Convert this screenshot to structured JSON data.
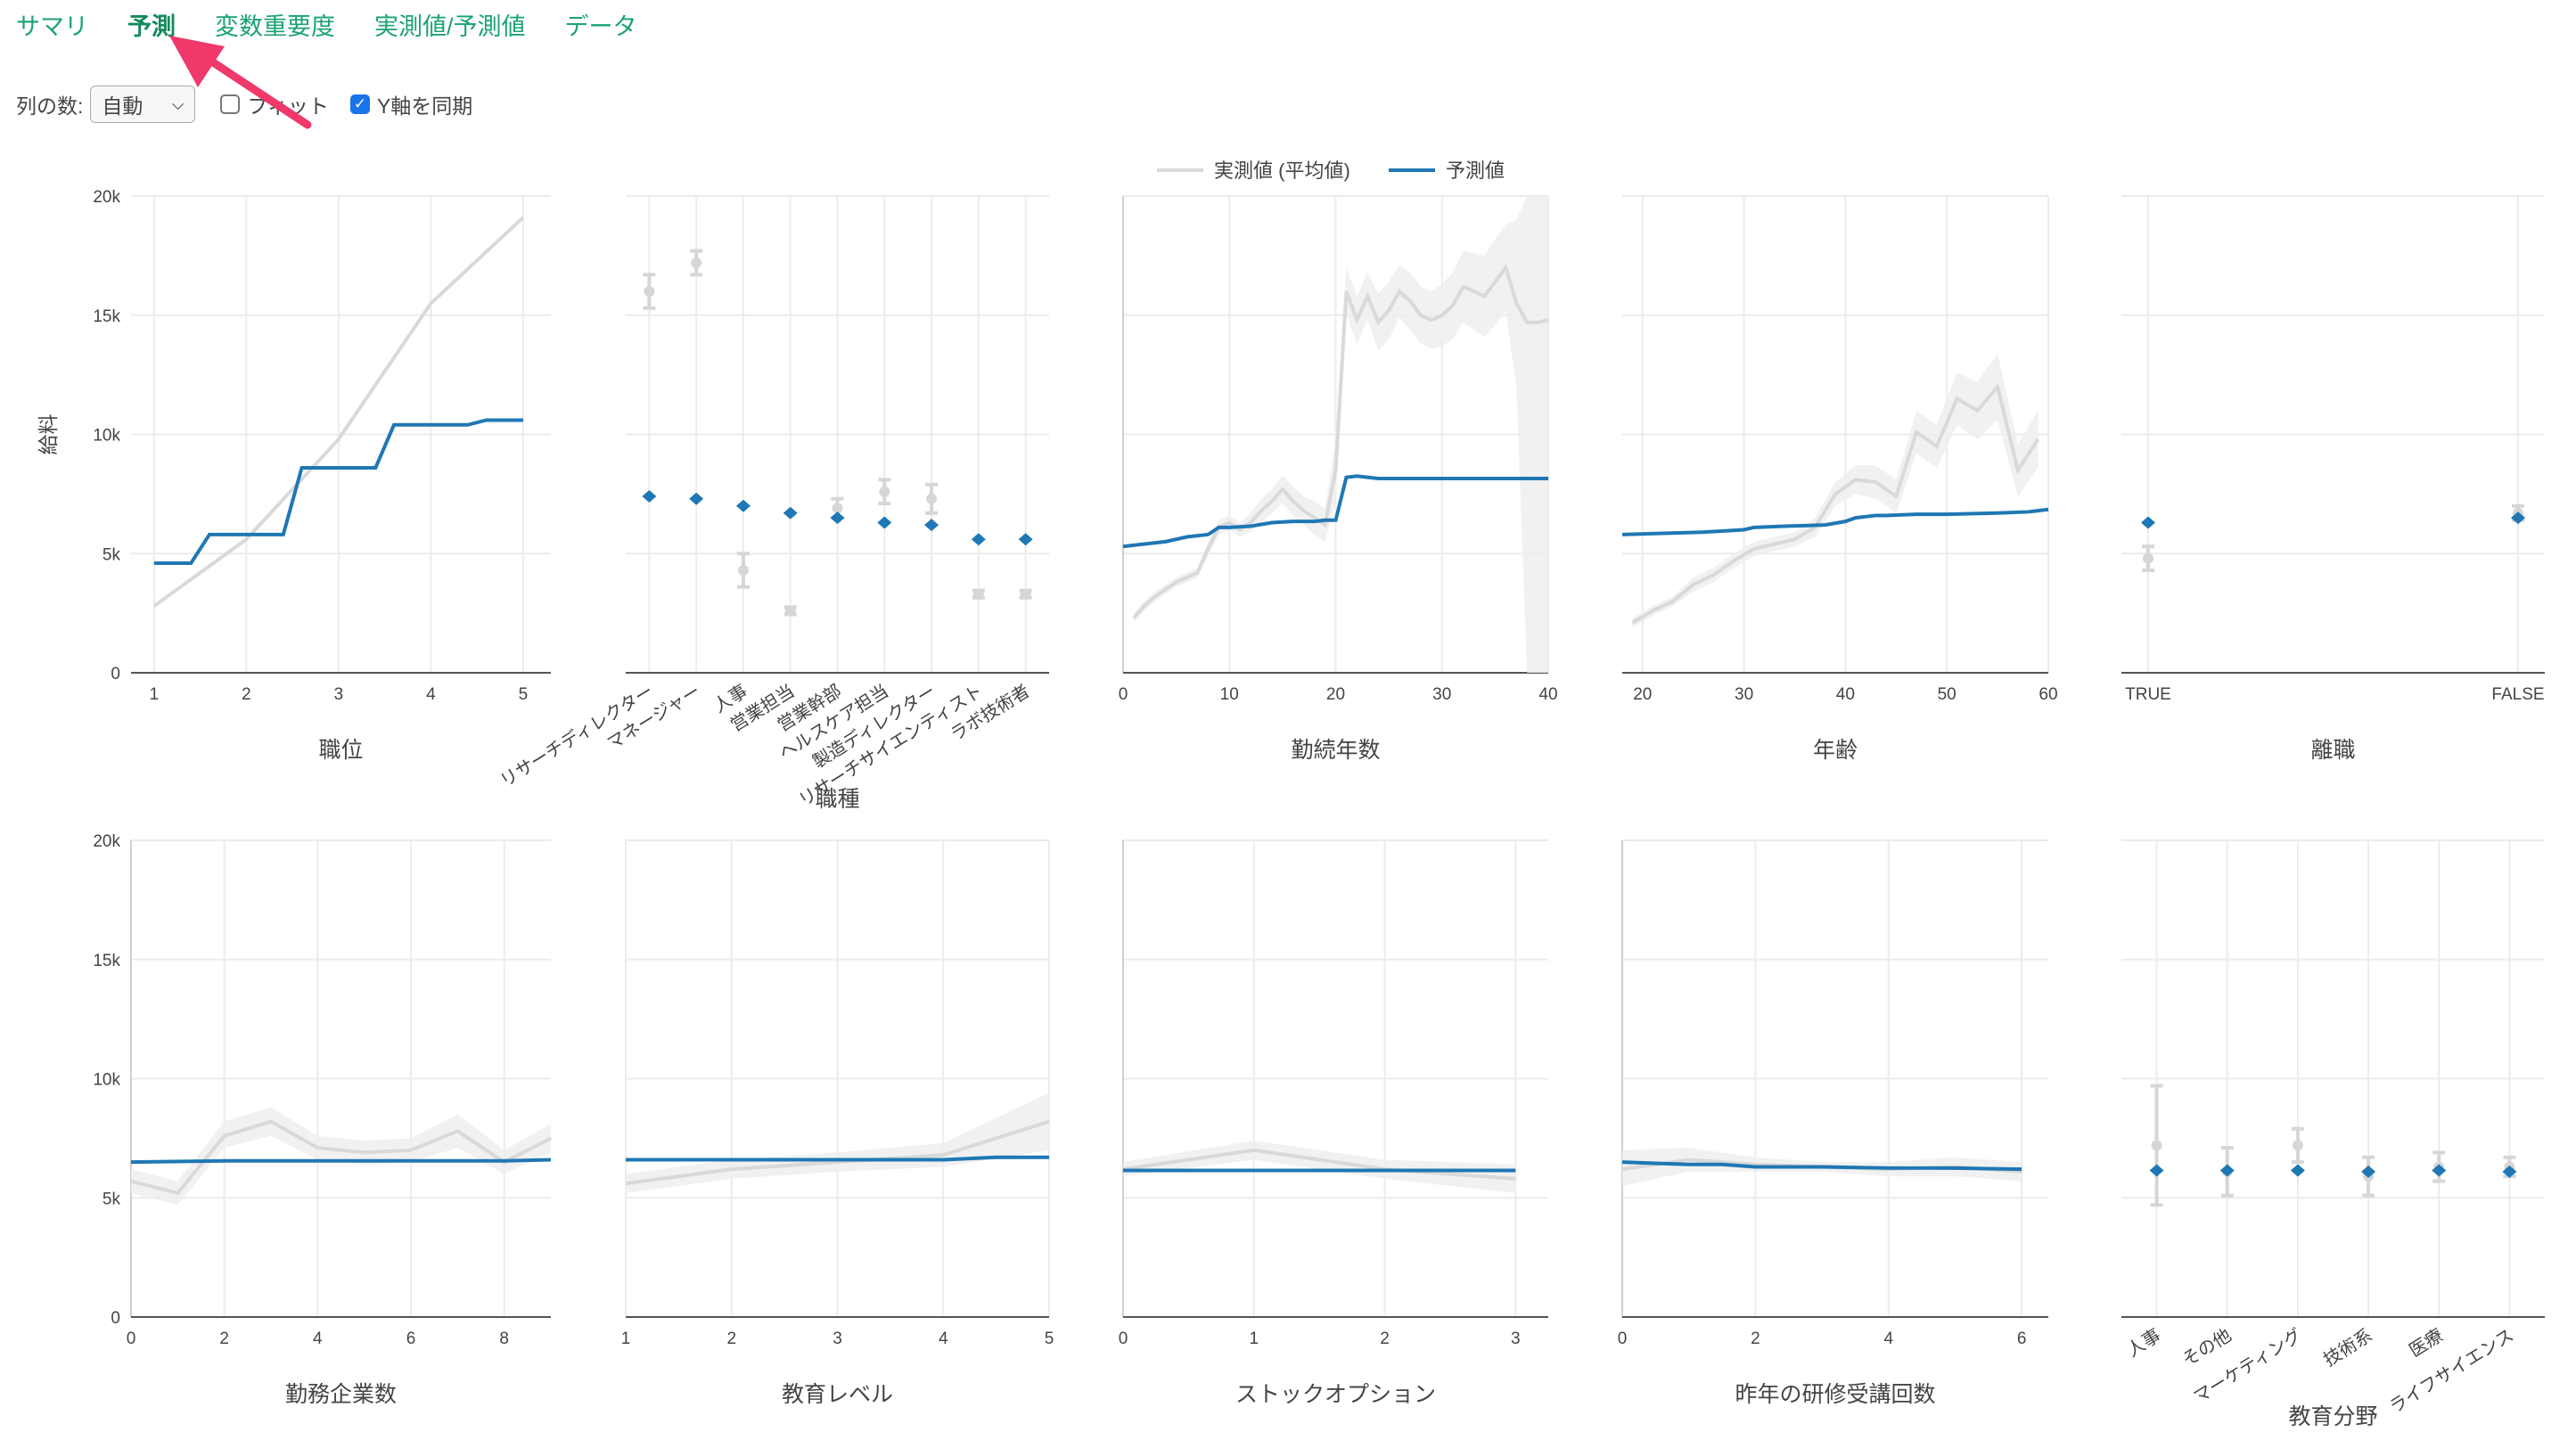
{
  "tabs": [
    {
      "label": "サマリ",
      "active": false
    },
    {
      "label": "予測",
      "active": true
    },
    {
      "label": "変数重要度",
      "active": false
    },
    {
      "label": "実測値/予測値",
      "active": false
    },
    {
      "label": "データ",
      "active": false
    }
  ],
  "controls": {
    "columns_label": "列の数:",
    "columns_value": "自動",
    "fit_label": "フィット",
    "fit_checked": false,
    "sync_y_label": "Y軸を同期",
    "sync_y_checked": true
  },
  "legend": {
    "actual_label": "実測値 (平均値)",
    "predicted_label": "予測値"
  },
  "colors": {
    "actual": "#d9d9d9",
    "predicted": "#1f77b4",
    "band": "#eeeeee",
    "tab": "#1aa274",
    "arrow": "#f0386b"
  },
  "chart_data": [
    {
      "type": "line",
      "title": "",
      "xlabel": "職位",
      "ylabel": "給料",
      "xlim": [
        0.75,
        5.3
      ],
      "ylim": [
        0,
        20000
      ],
      "xticks": [
        1,
        2,
        3,
        4,
        5
      ],
      "yticks": [
        {
          "v": 0,
          "label": "0"
        },
        {
          "v": 5000,
          "label": "5k"
        },
        {
          "v": 10000,
          "label": "10k"
        },
        {
          "v": 15000,
          "label": "15k"
        },
        {
          "v": 20000,
          "label": "20k"
        }
      ],
      "series": [
        {
          "name": "実測値 (平均値)",
          "x": [
            1,
            2,
            3,
            4,
            5
          ],
          "y": [
            2800,
            5600,
            9800,
            15500,
            19100
          ]
        },
        {
          "name": "予測値",
          "x": [
            1,
            1.4,
            1.6,
            2.4,
            2.6,
            3.4,
            3.6,
            4.4,
            4.6,
            5
          ],
          "y": [
            4600,
            4600,
            5800,
            5800,
            8600,
            8600,
            10400,
            10400,
            10600,
            10600
          ]
        }
      ]
    },
    {
      "type": "scatter",
      "title": "",
      "xlabel": "職種",
      "ylabel": "",
      "ylim": [
        0,
        20000
      ],
      "categories": [
        "リサーチディレクター",
        "マネージャー",
        "人事",
        "営業担当",
        "営業幹部",
        "ヘルスケア担当",
        "製造ディレクター",
        "リサーチサイエンティスト",
        "ラボ技術者"
      ],
      "series": [
        {
          "name": "実測値 (平均値)",
          "values": [
            16000,
            17200,
            4300,
            2600,
            6900,
            7600,
            7300,
            3300,
            3300
          ],
          "error": [
            700,
            500,
            700,
            150,
            400,
            500,
            600,
            150,
            150
          ]
        },
        {
          "name": "予測値",
          "values": [
            7400,
            7300,
            7000,
            6700,
            6500,
            6300,
            6200,
            5600,
            5600
          ]
        }
      ]
    },
    {
      "type": "line",
      "title": "",
      "xlabel": "勤続年数",
      "ylabel": "",
      "xlim": [
        0,
        40
      ],
      "ylim": [
        0,
        20000
      ],
      "xticks": [
        0,
        10,
        20,
        30,
        40
      ],
      "series": [
        {
          "name": "実測値 (平均値)",
          "x": [
            1,
            2,
            3,
            4,
            5,
            6,
            7,
            8,
            9,
            10,
            11,
            12,
            13,
            14,
            15,
            16,
            17,
            18,
            19,
            20,
            21,
            22,
            23,
            24,
            25,
            26,
            27,
            28,
            29,
            30,
            31,
            32,
            33,
            34,
            35,
            36,
            37,
            38,
            39,
            40
          ],
          "y": [
            2300,
            2800,
            3200,
            3500,
            3800,
            4000,
            4200,
            5200,
            6100,
            6300,
            6000,
            6300,
            6800,
            7200,
            7700,
            7200,
            6800,
            6500,
            6200,
            8500,
            16000,
            14800,
            15800,
            14700,
            15200,
            16000,
            15600,
            15000,
            14800,
            15000,
            15400,
            16200,
            16000,
            15800,
            16400,
            17000,
            15500,
            14700,
            14700,
            14800
          ],
          "band_lo": [
            2100,
            2600,
            3000,
            3300,
            3600,
            3800,
            4000,
            4900,
            5800,
            6000,
            5700,
            5900,
            6300,
            6700,
            7100,
            6600,
            6200,
            5800,
            5500,
            7200,
            15000,
            13800,
            14800,
            13500,
            14000,
            14900,
            14400,
            13800,
            13600,
            13700,
            14000,
            14700,
            14400,
            14100,
            14600,
            15200,
            12000,
            0,
            0,
            0
          ],
          "band_hi": [
            2500,
            3000,
            3400,
            3700,
            4000,
            4200,
            4400,
            5500,
            6400,
            6600,
            6300,
            6700,
            7300,
            7700,
            8300,
            7800,
            7400,
            7200,
            6900,
            9800,
            17000,
            15800,
            16800,
            15900,
            16400,
            17100,
            16800,
            16200,
            16000,
            16300,
            16800,
            17700,
            17600,
            17500,
            18200,
            18800,
            19000,
            20000,
            20000,
            20000
          ]
        },
        {
          "name": "予測値",
          "x": [
            0,
            2,
            4,
            6,
            8,
            9,
            10,
            12,
            14,
            16,
            18,
            19,
            20,
            21,
            22,
            24,
            26,
            30,
            35,
            40
          ],
          "y": [
            5300,
            5400,
            5500,
            5700,
            5800,
            6100,
            6100,
            6150,
            6300,
            6350,
            6350,
            6400,
            6400,
            8200,
            8250,
            8150,
            8150,
            8150,
            8150,
            8150
          ]
        }
      ]
    },
    {
      "type": "line",
      "title": "",
      "xlabel": "年齢",
      "ylabel": "",
      "xlim": [
        18,
        60
      ],
      "ylim": [
        0,
        20000
      ],
      "xticks": [
        20,
        30,
        40,
        50,
        60
      ],
      "series": [
        {
          "name": "実測値 (平均値)",
          "x": [
            19,
            21,
            23,
            25,
            27,
            29,
            31,
            33,
            35,
            37,
            39,
            41,
            43,
            45,
            47,
            49,
            51,
            53,
            55,
            57,
            59
          ],
          "y": [
            2100,
            2600,
            3000,
            3700,
            4100,
            4700,
            5200,
            5400,
            5600,
            6100,
            7500,
            8100,
            8000,
            7400,
            10100,
            9500,
            11500,
            11000,
            12000,
            8500,
            9800
          ],
          "band_lo": [
            1900,
            2400,
            2800,
            3400,
            3800,
            4400,
            4900,
            5100,
            5300,
            5700,
            7000,
            7500,
            7300,
            6700,
            9200,
            8600,
            10400,
            9800,
            10600,
            7400,
            8600
          ],
          "band_hi": [
            2300,
            2800,
            3200,
            4000,
            4400,
            5000,
            5500,
            5700,
            5900,
            6500,
            8000,
            8700,
            8700,
            8100,
            11000,
            10400,
            12600,
            12200,
            13400,
            9600,
            11000
          ]
        },
        {
          "name": "予測値",
          "x": [
            18,
            22,
            26,
            28,
            30,
            31,
            34,
            38,
            40,
            41,
            43,
            44,
            47,
            50,
            55,
            58,
            60
          ],
          "y": [
            5800,
            5850,
            5900,
            5950,
            6000,
            6100,
            6150,
            6200,
            6350,
            6500,
            6600,
            6600,
            6650,
            6650,
            6700,
            6750,
            6850
          ]
        }
      ]
    },
    {
      "type": "scatter",
      "title": "",
      "xlabel": "離職",
      "ylabel": "",
      "ylim": [
        0,
        20000
      ],
      "categories": [
        "TRUE",
        "FALSE"
      ],
      "series": [
        {
          "name": "実測値 (平均値)",
          "values": [
            4800,
            6700
          ],
          "error": [
            500,
            300
          ]
        },
        {
          "name": "予測値",
          "values": [
            6300,
            6500
          ]
        }
      ]
    },
    {
      "type": "line",
      "title": "",
      "xlabel": "勤務企業数",
      "ylabel": "",
      "xlim": [
        0,
        9
      ],
      "ylim": [
        0,
        20000
      ],
      "xticks": [
        0,
        2,
        4,
        6,
        8
      ],
      "yticks": [
        {
          "v": 0,
          "label": "0"
        },
        {
          "v": 5000,
          "label": "5k"
        },
        {
          "v": 10000,
          "label": "10k"
        },
        {
          "v": 15000,
          "label": "15k"
        },
        {
          "v": 20000,
          "label": "20k"
        }
      ],
      "series": [
        {
          "name": "実測値 (平均値)",
          "x": [
            0,
            1,
            2,
            3,
            4,
            5,
            6,
            7,
            8,
            9
          ],
          "y": [
            5700,
            5200,
            7600,
            8200,
            7100,
            6900,
            7000,
            7800,
            6500,
            7500
          ],
          "band_lo": [
            5200,
            4700,
            7100,
            7600,
            6600,
            6400,
            6500,
            7100,
            6000,
            6900
          ],
          "band_hi": [
            6200,
            5700,
            8200,
            8800,
            7600,
            7400,
            7500,
            8500,
            7000,
            8100
          ]
        },
        {
          "name": "予測値",
          "x": [
            0,
            2,
            4,
            6,
            8,
            9
          ],
          "y": [
            6500,
            6550,
            6550,
            6550,
            6550,
            6600
          ]
        }
      ]
    },
    {
      "type": "line",
      "title": "",
      "xlabel": "教育レベル",
      "ylabel": "",
      "xlim": [
        1,
        5
      ],
      "ylim": [
        0,
        20000
      ],
      "xticks": [
        1,
        2,
        3,
        4,
        5
      ],
      "series": [
        {
          "name": "実測値 (平均値)",
          "x": [
            1,
            2,
            3,
            4,
            5
          ],
          "y": [
            5600,
            6200,
            6500,
            6800,
            8200
          ],
          "band_lo": [
            5200,
            5800,
            6100,
            6300,
            7000
          ],
          "band_hi": [
            6000,
            6600,
            6900,
            7300,
            9400
          ]
        },
        {
          "name": "予測値",
          "x": [
            1,
            2,
            3,
            4,
            4.5,
            5
          ],
          "y": [
            6600,
            6600,
            6600,
            6600,
            6700,
            6700
          ]
        }
      ]
    },
    {
      "type": "line",
      "title": "",
      "xlabel": "ストックオプション",
      "ylabel": "",
      "xlim": [
        0,
        3.25
      ],
      "ylim": [
        0,
        20000
      ],
      "xticks": [
        0,
        1,
        2,
        3
      ],
      "series": [
        {
          "name": "実測値 (平均値)",
          "x": [
            0,
            1,
            2,
            3
          ],
          "y": [
            6200,
            7000,
            6200,
            5800
          ],
          "band_lo": [
            5900,
            6600,
            5800,
            5200
          ],
          "band_hi": [
            6500,
            7400,
            6600,
            6400
          ]
        },
        {
          "name": "予測値",
          "x": [
            0,
            1,
            2,
            3
          ],
          "y": [
            6150,
            6150,
            6150,
            6150
          ]
        }
      ]
    },
    {
      "type": "line",
      "title": "",
      "xlabel": "昨年の研修受講回数",
      "ylabel": "",
      "xlim": [
        0,
        6.4
      ],
      "ylim": [
        0,
        20000
      ],
      "xticks": [
        0,
        2,
        4,
        6
      ],
      "series": [
        {
          "name": "実測値 (平均値)",
          "x": [
            0,
            1,
            2,
            3,
            4,
            5,
            6
          ],
          "y": [
            6200,
            6600,
            6400,
            6300,
            6200,
            6300,
            6100
          ],
          "band_lo": [
            5500,
            6100,
            6100,
            6100,
            5900,
            5900,
            5700
          ],
          "band_hi": [
            7000,
            7100,
            6700,
            6500,
            6500,
            6700,
            6500
          ]
        },
        {
          "name": "予測値",
          "x": [
            0,
            0.5,
            1,
            1.5,
            2,
            3,
            4,
            5,
            6
          ],
          "y": [
            6500,
            6450,
            6400,
            6400,
            6300,
            6300,
            6250,
            6250,
            6200
          ]
        }
      ]
    },
    {
      "type": "scatter",
      "title": "",
      "xlabel": "教育分野",
      "ylabel": "",
      "ylim": [
        0,
        20000
      ],
      "categories": [
        "人事",
        "その他",
        "マーケティング",
        "技術系",
        "医療",
        "ライフサイエンス"
      ],
      "series": [
        {
          "name": "実測値 (平均値)",
          "values": [
            7200,
            6100,
            7200,
            5900,
            6300,
            6300
          ],
          "error": [
            2500,
            1000,
            700,
            800,
            600,
            400
          ]
        },
        {
          "name": "予測値",
          "values": [
            6150,
            6150,
            6150,
            6100,
            6150,
            6100
          ]
        }
      ]
    }
  ]
}
